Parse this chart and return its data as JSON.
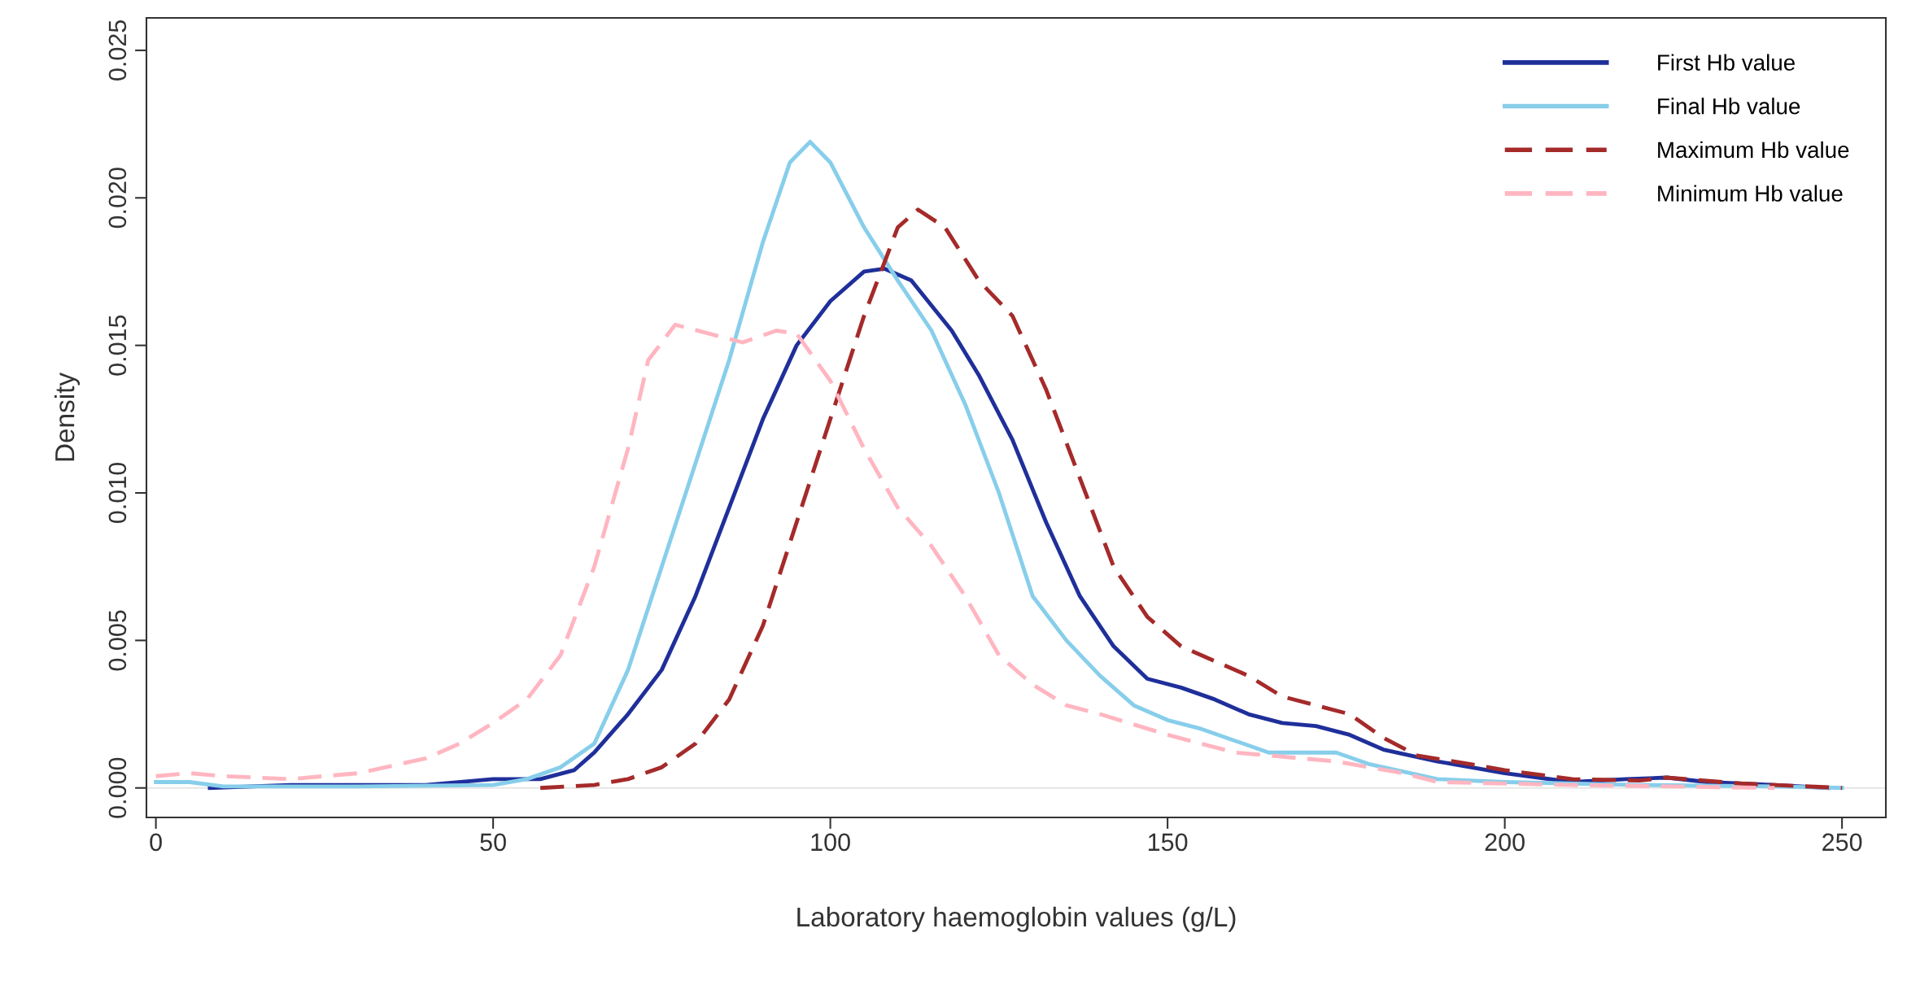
{
  "chart_data": {
    "type": "line",
    "xlabel": "Laboratory haemoglobin values (g/L)",
    "ylabel": "Density",
    "xlim": [
      -1.4,
      256.5
    ],
    "ylim": [
      -0.001,
      0.0261
    ],
    "xticks": [
      0,
      50,
      100,
      150,
      200,
      250
    ],
    "yticks": [
      {
        "value": 0,
        "label": "0.000"
      },
      {
        "value": 0.005,
        "label": "0.005"
      },
      {
        "value": 0.01,
        "label": "0.010"
      },
      {
        "value": 0.015,
        "label": "0.015"
      },
      {
        "value": 0.02,
        "label": "0.020"
      },
      {
        "value": 0.025,
        "label": "0.025"
      }
    ],
    "grid": false,
    "legend": "top right",
    "marker": "none",
    "ref_lines": [
      {
        "axis": "y",
        "value": 0,
        "color": "#e6e6e6"
      }
    ],
    "series": [
      {
        "name": "First Hb value",
        "color": "#1f2f9a",
        "line_style": "solid",
        "x": [
          8,
          20,
          40,
          50,
          57,
          62,
          65,
          70,
          75,
          80,
          85,
          90,
          95,
          100,
          105,
          108,
          112,
          118,
          122,
          127,
          132,
          137,
          142,
          147,
          152,
          157,
          162,
          167,
          172,
          177,
          182,
          190,
          200,
          210,
          218,
          224,
          230,
          240,
          248
        ],
        "values": [
          0,
          0.0001,
          0.0001,
          0.0003,
          0.0003,
          0.0006,
          0.0012,
          0.0025,
          0.004,
          0.0065,
          0.0095,
          0.0125,
          0.015,
          0.0165,
          0.0175,
          0.0176,
          0.0172,
          0.0155,
          0.014,
          0.0118,
          0.009,
          0.0065,
          0.0048,
          0.0037,
          0.0034,
          0.003,
          0.0025,
          0.0022,
          0.0021,
          0.0018,
          0.0013,
          0.0009,
          0.0005,
          0.0002,
          0.0003,
          0.00035,
          0.0002,
          0.0001,
          0
        ]
      },
      {
        "name": "Final Hb value",
        "color": "#87ceeb",
        "line_style": "solid",
        "x": [
          0,
          5,
          10,
          30,
          50,
          55,
          60,
          65,
          70,
          75,
          80,
          85,
          90,
          94,
          97,
          100,
          105,
          110,
          115,
          120,
          125,
          130,
          135,
          140,
          145,
          150,
          155,
          160,
          165,
          170,
          175,
          180,
          190,
          200,
          220,
          240,
          250
        ],
        "values": [
          0.0002,
          0.0002,
          5e-05,
          5e-05,
          0.0001,
          0.0003,
          0.0007,
          0.0015,
          0.004,
          0.0075,
          0.011,
          0.0145,
          0.0185,
          0.0212,
          0.0219,
          0.0212,
          0.019,
          0.0172,
          0.0155,
          0.013,
          0.01,
          0.0065,
          0.005,
          0.0038,
          0.0028,
          0.0023,
          0.002,
          0.0016,
          0.0012,
          0.0012,
          0.0012,
          0.0008,
          0.0003,
          0.0002,
          0.0001,
          5e-05,
          0
        ]
      },
      {
        "name": "Maximum Hb value",
        "color": "#a52a2a",
        "line_style": "dashed",
        "x": [
          57,
          65,
          70,
          75,
          80,
          85,
          90,
          95,
          100,
          105,
          110,
          113,
          117,
          122,
          127,
          132,
          137,
          142,
          147,
          152,
          157,
          162,
          167,
          172,
          177,
          182,
          187,
          195,
          200,
          210,
          220,
          224,
          235,
          250
        ],
        "values": [
          0,
          0.0001,
          0.0003,
          0.0007,
          0.0015,
          0.003,
          0.0055,
          0.009,
          0.0125,
          0.016,
          0.019,
          0.0196,
          0.019,
          0.0172,
          0.016,
          0.0135,
          0.0105,
          0.0075,
          0.0058,
          0.0048,
          0.0043,
          0.0038,
          0.0031,
          0.0028,
          0.0025,
          0.0017,
          0.0011,
          0.0008,
          0.0006,
          0.0003,
          0.00025,
          0.00035,
          0.00015,
          0
        ]
      },
      {
        "name": "Minimum Hb value",
        "color": "#ffb6c1",
        "line_style": "dashed",
        "x": [
          0,
          5,
          10,
          20,
          30,
          40,
          45,
          50,
          55,
          60,
          65,
          70,
          73,
          77,
          82,
          87,
          92,
          95,
          100,
          105,
          110,
          115,
          120,
          125,
          130,
          135,
          140,
          150,
          160,
          170,
          175,
          185,
          190,
          210,
          240
        ],
        "values": [
          0.0004,
          0.0005,
          0.0004,
          0.0003,
          0.0005,
          0.001,
          0.0015,
          0.0022,
          0.003,
          0.0045,
          0.0075,
          0.0115,
          0.0145,
          0.0157,
          0.0154,
          0.0151,
          0.0155,
          0.0154,
          0.0138,
          0.0115,
          0.0095,
          0.0082,
          0.0065,
          0.0045,
          0.0035,
          0.0028,
          0.0025,
          0.0018,
          0.0012,
          0.001,
          0.0009,
          0.0005,
          0.0002,
          0.0001,
          0
        ]
      }
    ]
  }
}
